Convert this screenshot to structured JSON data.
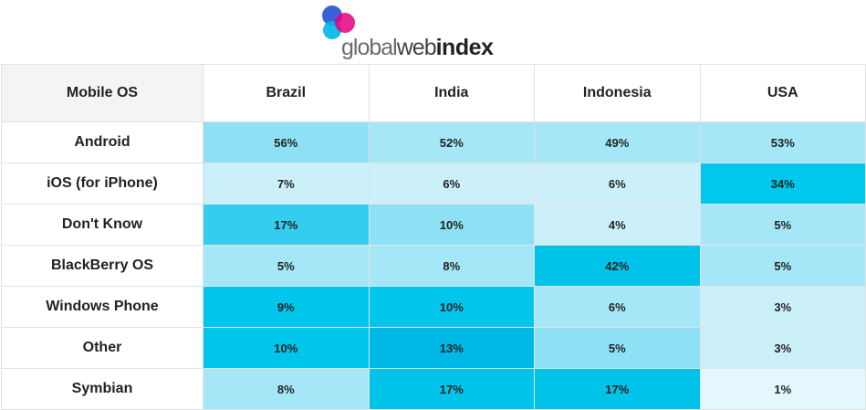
{
  "logo": {
    "part1": "global",
    "part2": "web",
    "part3": "index",
    "colors": [
      "#2d5ad6",
      "#e5007e",
      "#00b6e8"
    ]
  },
  "chart_data": {
    "type": "table",
    "corner_label": "Mobile OS",
    "columns": [
      "Brazil",
      "India",
      "Indonesia",
      "USA"
    ],
    "rows": [
      {
        "label": "Android",
        "values": [
          56,
          52,
          49,
          53
        ],
        "display": [
          "56%",
          "52%",
          "49%",
          "53%"
        ]
      },
      {
        "label": "iOS (for iPhone)",
        "values": [
          7,
          6,
          6,
          34
        ],
        "display": [
          "7%",
          "6%",
          "6%",
          "34%"
        ]
      },
      {
        "label": "Don't Know",
        "values": [
          17,
          10,
          4,
          5
        ],
        "display": [
          "17%",
          "10%",
          "4%",
          "5%"
        ]
      },
      {
        "label": "BlackBerry OS",
        "values": [
          5,
          8,
          42,
          5
        ],
        "display": [
          "5%",
          "8%",
          "42%",
          "5%"
        ]
      },
      {
        "label": "Windows Phone",
        "values": [
          9,
          10,
          6,
          3
        ],
        "display": [
          "9%",
          "10%",
          "6%",
          "3%"
        ]
      },
      {
        "label": "Other",
        "values": [
          10,
          13,
          5,
          3
        ],
        "display": [
          "10%",
          "13%",
          "5%",
          "3%"
        ]
      },
      {
        "label": "Symbian",
        "values": [
          8,
          17,
          17,
          1
        ],
        "display": [
          "8%",
          "17%",
          "17%",
          "1%"
        ]
      }
    ],
    "cell_colors": [
      [
        "#8ee1f4",
        "#a5e7f6",
        "#a5e7f6",
        "#a5e7f6"
      ],
      [
        "#cbf0fa",
        "#cbf0fa",
        "#cbf0fa",
        "#00c7ec"
      ],
      [
        "#35cdef",
        "#8ee1f4",
        "#cbf0fa",
        "#a5e7f6"
      ],
      [
        "#a5e7f6",
        "#a5e7f6",
        "#00c3ea",
        "#a5e7f6"
      ],
      [
        "#00c6ec",
        "#00c6ec",
        "#a5e7f6",
        "#cbf0fa"
      ],
      [
        "#00c6ec",
        "#00b8e6",
        "#8ee1f4",
        "#cbf0fa"
      ],
      [
        "#a5e7f6",
        "#00c3ea",
        "#00c3ea",
        "#e3f7fc"
      ]
    ]
  }
}
